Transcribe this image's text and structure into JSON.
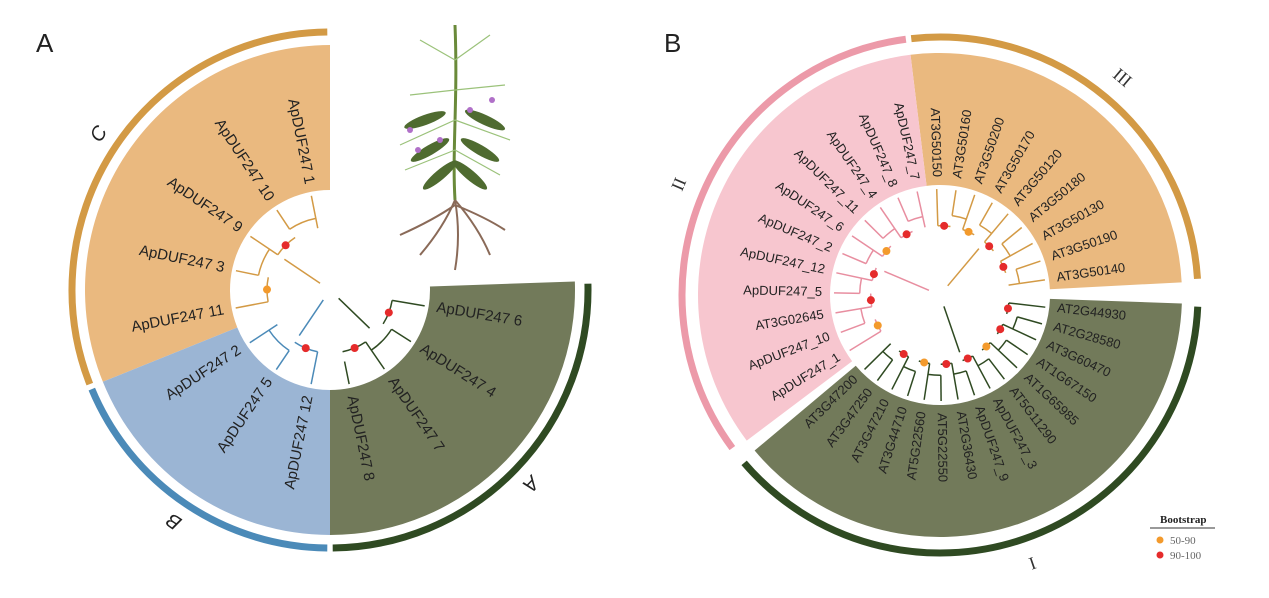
{
  "panel_a": {
    "panel_label": "A",
    "clades": [
      {
        "name": "C",
        "color": "#eab97f",
        "arc_color": "#d39a45",
        "branch_color": "#d39a45",
        "leaves": [
          "ApDUF247 11",
          "ApDUF247 3",
          "ApDUF247 9",
          "ApDUF247 10",
          "ApDUF247 1"
        ]
      },
      {
        "name": "B",
        "color": "#9bb5d4",
        "arc_color": "#4b8ab8",
        "branch_color": "#4b8ab8",
        "leaves": [
          "ApDUF247 12",
          "ApDUF247 5",
          "ApDUF247 2"
        ]
      },
      {
        "name": "A",
        "color": "#727a5a",
        "arc_color": "#2f4a22",
        "branch_color": "#2f4a22",
        "leaves": [
          "ApDUF247 6",
          "ApDUF247 4",
          "ApDUF247 7",
          "ApDUF247 8"
        ]
      }
    ],
    "illustration": "plant-with-roots"
  },
  "panel_b": {
    "panel_label": "B",
    "clades": [
      {
        "name": "III",
        "color": "#eab97f",
        "arc_color": "#d39a45",
        "branch_color": "#d39a45",
        "leaves": [
          "AT3G50150",
          "AT3G50160",
          "AT3G50200",
          "AT3G50170",
          "AT3G50120",
          "AT3G50180",
          "AT3G50130",
          "AT3G50190",
          "AT3G50140"
        ]
      },
      {
        "name": "I",
        "color": "#727a5a",
        "arc_color": "#2f4a22",
        "branch_color": "#2f4a22",
        "leaves": [
          "AT2G44930",
          "AT2G28580",
          "AT3G60470",
          "AT1G67150",
          "AT1G65985",
          "AT5G11290",
          "ApDUF247_3",
          "ApDUF247_9",
          "AT2G36430",
          "AT5G22550",
          "AT5G22560",
          "AT3G44710",
          "AT3G47210",
          "AT3G47250",
          "AT3G47200"
        ]
      },
      {
        "name": "II",
        "color": "#f7c6cf",
        "arc_color": "#ec9aa9",
        "branch_color": "#e88ea0",
        "leaves": [
          "ApDUF247_1",
          "ApDUF247_10",
          "AT3G02645",
          "ApDUF247_5",
          "ApDUF247_12",
          "ApDUF247_2",
          "ApDUF247_6",
          "ApDUF247_11",
          "ApDUF247_4",
          "ApDUF247_8",
          "ApDUF247_7"
        ]
      }
    ],
    "legend": {
      "title": "Bootstrap",
      "items": [
        {
          "label": "50-90",
          "color": "#f39a2c"
        },
        {
          "label": "90-100",
          "color": "#e52b2b"
        }
      ]
    }
  }
}
